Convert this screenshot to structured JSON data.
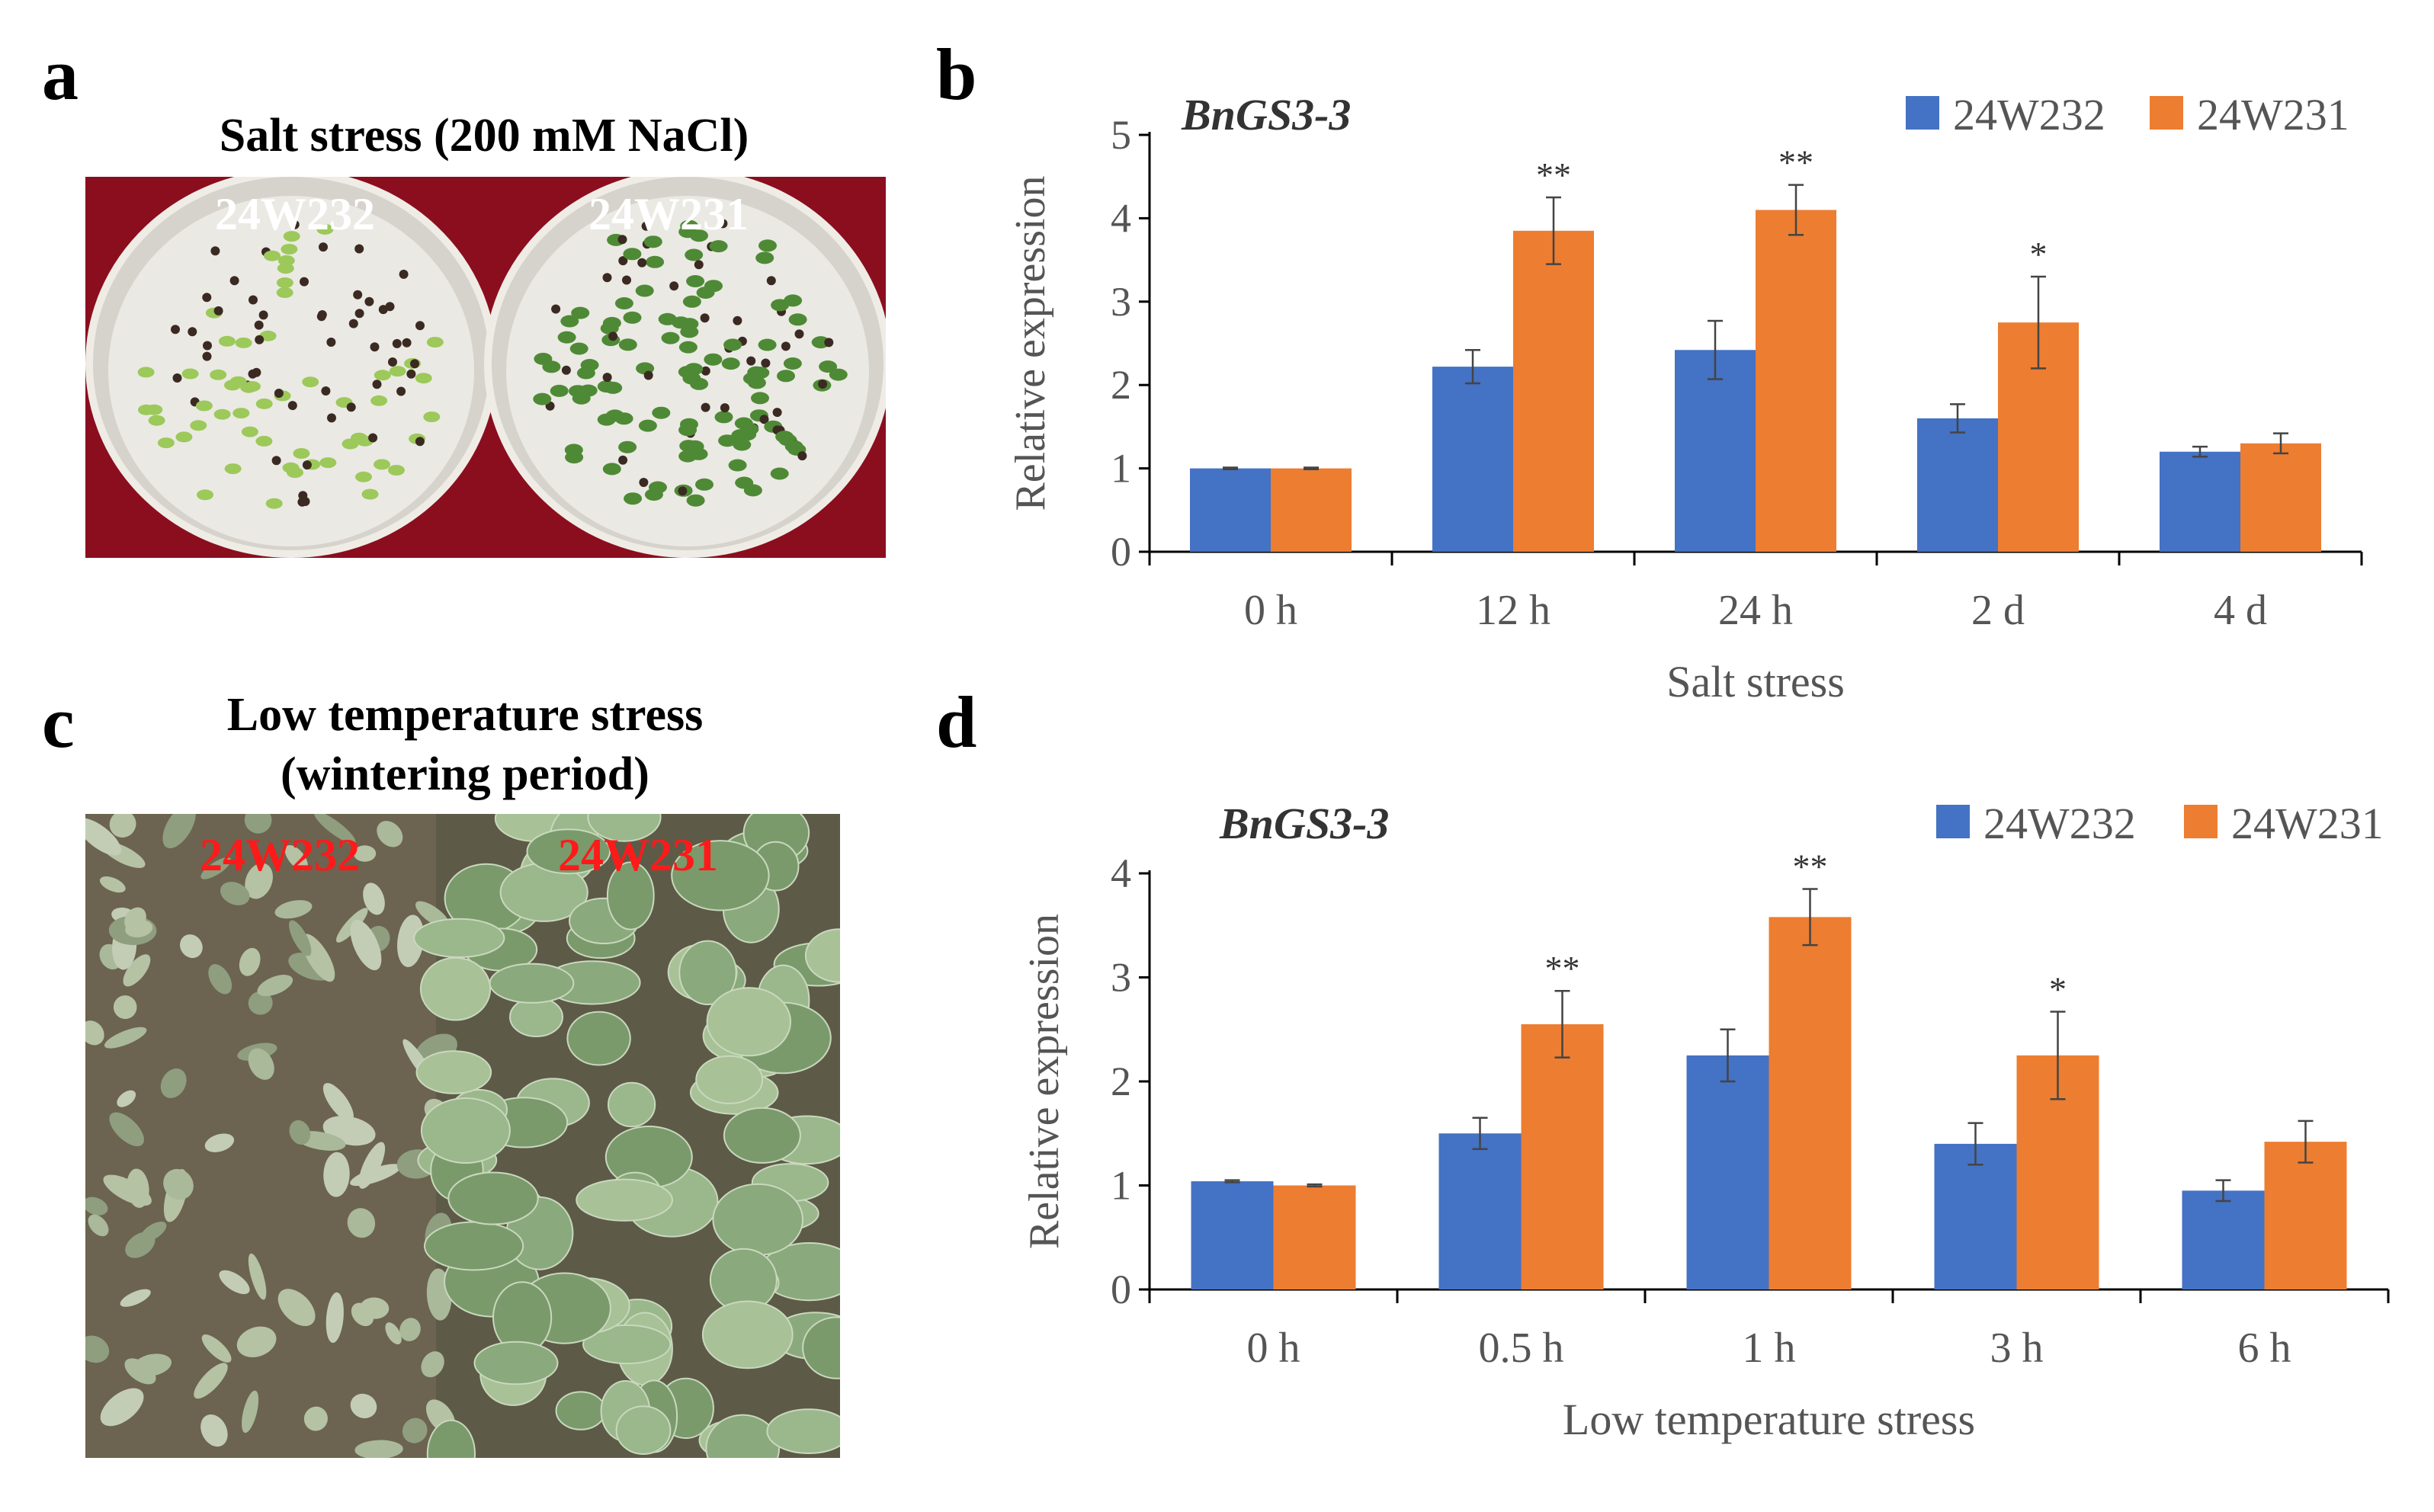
{
  "panels": {
    "a": {
      "letter": "a",
      "title": "Salt stress (200 mM NaCl)",
      "labels": [
        "24W232",
        "24W231"
      ],
      "label_color": "#ffffff"
    },
    "b": {
      "letter": "b"
    },
    "c": {
      "letter": "c",
      "title_line1": "Low temperature stress",
      "title_line2": "(wintering period)",
      "labels": [
        "24W232",
        "24W231"
      ],
      "label_color": "#ff1a1a"
    },
    "d": {
      "letter": "d"
    }
  },
  "colors": {
    "series1": "#4472C4",
    "series2": "#ED7D31",
    "axis_text": "#555555",
    "background_a": "#8b0e1e"
  },
  "chart_data": [
    {
      "id": "b",
      "type": "bar",
      "title": "BnGS3-3",
      "xlabel": "Salt stress",
      "ylabel": "Relative expression",
      "ylim": [
        0,
        5
      ],
      "yticks": [
        0,
        1,
        2,
        3,
        4,
        5
      ],
      "legend_position": "top-right",
      "categories": [
        "0 h",
        "12 h",
        "24 h",
        "2 d",
        "4 d"
      ],
      "series": [
        {
          "name": "24W232",
          "values": [
            1.0,
            2.22,
            2.42,
            1.6,
            1.2
          ],
          "errors": [
            0.01,
            0.2,
            0.35,
            0.17,
            0.06
          ]
        },
        {
          "name": "24W231",
          "values": [
            1.0,
            3.85,
            4.1,
            2.75,
            1.3
          ],
          "errors": [
            0.01,
            0.4,
            0.3,
            0.55,
            0.12
          ]
        }
      ],
      "significance": [
        "",
        "**",
        "**",
        "*",
        ""
      ]
    },
    {
      "id": "d",
      "type": "bar",
      "title": "BnGS3-3",
      "xlabel": "Low temperature  stress",
      "ylabel": "Relative expression",
      "ylim": [
        0,
        4
      ],
      "yticks": [
        0,
        1,
        2,
        3,
        4
      ],
      "legend_position": "top-right",
      "categories": [
        "0 h",
        "0.5 h",
        "1 h",
        "3 h",
        "6 h"
      ],
      "series": [
        {
          "name": "24W232",
          "values": [
            1.04,
            1.5,
            2.25,
            1.4,
            0.95
          ],
          "errors": [
            0.01,
            0.15,
            0.25,
            0.2,
            0.1
          ]
        },
        {
          "name": "24W231",
          "values": [
            1.0,
            2.55,
            3.58,
            2.25,
            1.42
          ],
          "errors": [
            0.01,
            0.32,
            0.27,
            0.42,
            0.2
          ]
        }
      ],
      "significance": [
        "",
        "**",
        "**",
        "*",
        ""
      ]
    }
  ]
}
